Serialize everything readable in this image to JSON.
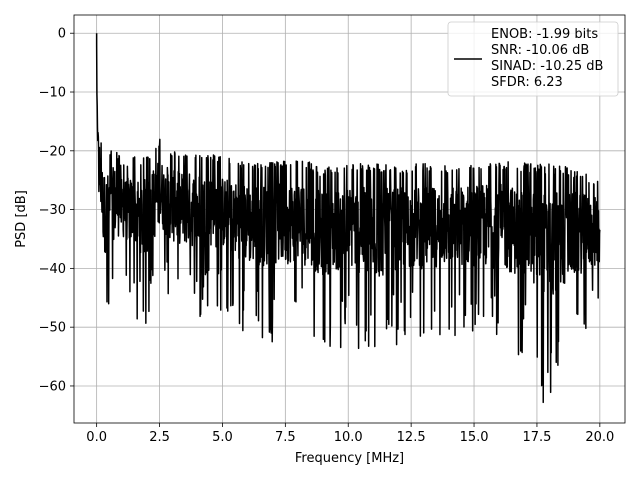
{
  "chart_data": {
    "type": "line",
    "xlabel": "Frequency [MHz]",
    "ylabel": "PSD [dB]",
    "xlim": [
      -0.9,
      21.0
    ],
    "ylim": [
      -66.3,
      3.1
    ],
    "xticks": [
      0.0,
      2.5,
      5.0,
      7.5,
      10.0,
      12.5,
      15.0,
      17.5,
      20.0
    ],
    "xtick_labels": [
      "0.0",
      "2.5",
      "5.0",
      "7.5",
      "10.0",
      "12.5",
      "15.0",
      "17.5",
      "20.0"
    ],
    "yticks": [
      0,
      -10,
      -20,
      -30,
      -40,
      -50,
      -60
    ],
    "ytick_labels": [
      "0",
      "−10",
      "−20",
      "−30",
      "−40",
      "−50",
      "−60"
    ],
    "grid": true,
    "legend_position": "top-right",
    "series": [
      {
        "color": "#000000",
        "x": [
          0.0,
          0.02,
          0.04,
          0.06,
          0.08,
          0.1,
          0.15,
          0.2,
          0.3,
          0.5,
          0.75,
          1.0,
          1.5,
          2.0,
          2.5,
          3.0,
          4.0,
          5.0,
          6.0,
          7.0,
          8.0,
          9.0,
          10.0,
          11.0,
          12.0,
          13.0,
          14.0,
          15.0,
          16.0,
          17.0,
          18.0,
          19.0,
          20.0
        ],
        "upper": [
          0.0,
          -8.0,
          -12.0,
          -15.0,
          -18.0,
          -19.5,
          -17.5,
          -19.0,
          -20.0,
          -20.0,
          -19.0,
          -22.0,
          -21.0,
          -21.0,
          -18.0,
          -20.0,
          -20.0,
          -21.0,
          -22.0,
          -22.0,
          -21.0,
          -23.0,
          -22.0,
          -22.0,
          -22.5,
          -22.0,
          -22.5,
          -21.5,
          -21.5,
          -22.0,
          -22.0,
          -23.0,
          -25.0
        ],
        "lower": [
          -8.0,
          -15.0,
          -20.0,
          -25.0,
          -30.0,
          -34.0,
          -38.0,
          -42.0,
          -50.5,
          -49.0,
          -46.0,
          -44.0,
          -48.0,
          -51.0,
          -44.0,
          -47.0,
          -49.0,
          -48.0,
          -52.0,
          -53.0,
          -52.0,
          -55.0,
          -53.0,
          -57.5,
          -53.0,
          -53.5,
          -52.0,
          -53.0,
          -54.0,
          -56.0,
          -62.8,
          -55.0,
          -50.0
        ],
        "min_point": {
          "x": 17.75,
          "y": -62.8
        },
        "max_point": {
          "x": 0.0,
          "y": 0.0
        }
      }
    ],
    "legend_entries": [
      "ENOB: -1.99 bits",
      "SNR: -10.06 dB",
      "SINAD: -10.25 dB",
      "SFDR: 6.23"
    ]
  }
}
